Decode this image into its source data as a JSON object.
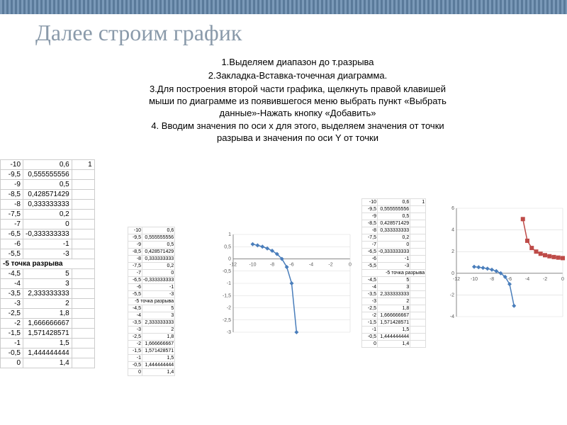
{
  "title": "Далее строим график",
  "instructions": [
    "1.Выделяем диапазон до т.разрыва",
    "2.Закладка-Вставка-точечная диаграмма.",
    "3.Для построения второй части графика, щелкнуть правой клавишей мыши по диаграмме из появившегося меню выбрать пункт «Выбрать данные»-Нажать кнопку «Добавить»",
    "4. Вводим значения по оси х для этого, выделяем значения от точки разрыва и значения по оси Y от точки"
  ],
  "table_left": {
    "upper": [
      [
        "-10",
        "0,6",
        "1"
      ],
      [
        "-9,5",
        "0,555555556",
        ""
      ],
      [
        "-9",
        "0,5",
        ""
      ],
      [
        "-8,5",
        "0,428571429",
        ""
      ],
      [
        "-8",
        "0,333333333",
        ""
      ],
      [
        "-7,5",
        "0,2",
        ""
      ],
      [
        "-7",
        "0",
        ""
      ],
      [
        "-6,5",
        "-0,333333333",
        ""
      ],
      [
        "-6",
        "-1",
        ""
      ],
      [
        "-5,5",
        "-3",
        ""
      ]
    ],
    "break_label": "-5 точка разрыва",
    "lower": [
      [
        "-4,5",
        "5",
        ""
      ],
      [
        "-4",
        "3",
        ""
      ],
      [
        "-3,5",
        "2,333333333",
        ""
      ],
      [
        "-3",
        "2",
        ""
      ],
      [
        "-2,5",
        "1,8",
        ""
      ],
      [
        "-2",
        "1,666666667",
        ""
      ],
      [
        "-1,5",
        "1,571428571",
        ""
      ],
      [
        "-1",
        "1,5",
        ""
      ],
      [
        "-0,5",
        "1,444444444",
        ""
      ],
      [
        "0",
        "1,4",
        ""
      ]
    ]
  },
  "table_mid1": {
    "upper": [
      [
        "-10",
        "0,6"
      ],
      [
        "-9,5",
        "0,555555556"
      ],
      [
        "-9",
        "0,5"
      ],
      [
        "-8,5",
        "0,428571429"
      ],
      [
        "-8",
        "0,333333333"
      ],
      [
        "-7,5",
        "0,2"
      ],
      [
        "-7",
        "0"
      ],
      [
        "-6,5",
        "-0,333333333"
      ],
      [
        "-6",
        "-1"
      ],
      [
        "-5,5",
        "-3"
      ]
    ],
    "break_label": "-5 точка разрыва",
    "lower": [
      [
        "-4,5",
        "5"
      ],
      [
        "-4",
        "3"
      ],
      [
        "-3,5",
        "2,333333333"
      ],
      [
        "-3",
        "2"
      ],
      [
        "-2,5",
        "1,8"
      ],
      [
        "-2",
        "1,666666667"
      ],
      [
        "-1,5",
        "1,571428571"
      ],
      [
        "-1",
        "1,5"
      ],
      [
        "-0,5",
        "1,444444444"
      ],
      [
        "0",
        "1,4"
      ]
    ]
  },
  "table_mid2": {
    "upper": [
      [
        "-10",
        "0,6",
        "1"
      ],
      [
        "-9,5",
        "0,555555556",
        ""
      ],
      [
        "-9",
        "0,5",
        ""
      ],
      [
        "-8,5",
        "0,428571429",
        ""
      ],
      [
        "-8",
        "0,333333333",
        ""
      ],
      [
        "-7,5",
        "0,2",
        ""
      ],
      [
        "-7",
        "0",
        ""
      ],
      [
        "-6,5",
        "-0,333333333",
        ""
      ],
      [
        "-6",
        "-1",
        ""
      ],
      [
        "-5,5",
        "-3",
        ""
      ]
    ],
    "break_label": "-5 точка разрыва",
    "lower": [
      [
        "-4,5",
        "5",
        ""
      ],
      [
        "-4",
        "3",
        ""
      ],
      [
        "-3,5",
        "2,333333333",
        ""
      ],
      [
        "-3",
        "2",
        ""
      ],
      [
        "-2,5",
        "1,8",
        ""
      ],
      [
        "-2",
        "1,666666667",
        ""
      ],
      [
        "-1,5",
        "1,571428571",
        ""
      ],
      [
        "-1",
        "1,5",
        ""
      ],
      [
        "-0,5",
        "1,444444444",
        ""
      ],
      [
        "0",
        "1,4",
        ""
      ]
    ]
  },
  "chart1": {
    "type": "scatter-line",
    "xlim": [
      -12,
      0
    ],
    "ylim": [
      -3,
      1
    ],
    "xticks": [
      -12,
      -10,
      -8,
      -6,
      -4,
      -2,
      0
    ],
    "yticks": [
      -3,
      -2.5,
      -2,
      -1.5,
      -1,
      -0.5,
      0,
      0.5,
      1
    ],
    "series": [
      {
        "color": "#4a7ebb",
        "marker": "diamond",
        "marker_size": 3,
        "points": [
          [
            -10,
            0.6
          ],
          [
            -9.5,
            0.556
          ],
          [
            -9,
            0.5
          ],
          [
            -8.5,
            0.429
          ],
          [
            -8,
            0.333
          ],
          [
            -7.5,
            0.2
          ],
          [
            -7,
            0
          ],
          [
            -6.5,
            -0.333
          ],
          [
            -6,
            -1
          ],
          [
            -5.5,
            -3
          ]
        ]
      }
    ],
    "grid_color": "#d9d9d9",
    "axis_color": "#888888",
    "label_fontsize": 7,
    "label_color": "#595959",
    "background": "#ffffff"
  },
  "chart2": {
    "type": "scatter-line",
    "xlim": [
      -12,
      0
    ],
    "ylim": [
      -4,
      6
    ],
    "xticks": [
      -12,
      -10,
      -8,
      -6,
      -4,
      -2,
      0
    ],
    "yticks": [
      -4,
      -2,
      0,
      2,
      4,
      6
    ],
    "series": [
      {
        "color": "#4a7ebb",
        "marker": "diamond",
        "marker_size": 3,
        "points": [
          [
            -10,
            0.6
          ],
          [
            -9.5,
            0.556
          ],
          [
            -9,
            0.5
          ],
          [
            -8.5,
            0.429
          ],
          [
            -8,
            0.333
          ],
          [
            -7.5,
            0.2
          ],
          [
            -7,
            0
          ],
          [
            -6.5,
            -0.333
          ],
          [
            -6,
            -1
          ],
          [
            -5.5,
            -3
          ]
        ]
      },
      {
        "color": "#be4b48",
        "marker": "square",
        "marker_size": 3,
        "points": [
          [
            -4.5,
            5
          ],
          [
            -4,
            3
          ],
          [
            -3.5,
            2.333
          ],
          [
            -3,
            2
          ],
          [
            -2.5,
            1.8
          ],
          [
            -2,
            1.667
          ],
          [
            -1.5,
            1.571
          ],
          [
            -1,
            1.5
          ],
          [
            -0.5,
            1.444
          ],
          [
            0,
            1.4
          ]
        ]
      }
    ],
    "grid_color": "#d9d9d9",
    "axis_color": "#888888",
    "label_fontsize": 7,
    "label_color": "#595959",
    "background": "#ffffff"
  }
}
